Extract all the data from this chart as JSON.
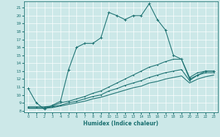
{
  "xlabel": "Humidex (Indice chaleur)",
  "bg_color": "#cce8e8",
  "line_color": "#1a7070",
  "grid_color": "#ffffff",
  "xlim": [
    -0.5,
    23.5
  ],
  "ylim": [
    7.8,
    21.8
  ],
  "xticks": [
    0,
    1,
    2,
    3,
    4,
    5,
    6,
    7,
    8,
    9,
    10,
    11,
    12,
    13,
    14,
    15,
    16,
    17,
    18,
    19,
    20,
    21,
    22,
    23
  ],
  "yticks": [
    8,
    9,
    10,
    11,
    12,
    13,
    14,
    15,
    16,
    17,
    18,
    19,
    20,
    21
  ],
  "line1_x": [
    0,
    1,
    2,
    3,
    4,
    5,
    6,
    7,
    8,
    9,
    10,
    11,
    12,
    13,
    14,
    15,
    16,
    17,
    18,
    19,
    20,
    21,
    22,
    23
  ],
  "line1_y": [
    10.8,
    9.0,
    8.2,
    8.7,
    9.2,
    13.2,
    16.0,
    16.5,
    16.5,
    17.2,
    20.4,
    20.0,
    19.5,
    20.0,
    20.0,
    21.5,
    19.5,
    18.2,
    15.0,
    14.5,
    12.0,
    12.5,
    13.0,
    13.0
  ],
  "line2_x": [
    0,
    1,
    2,
    3,
    4,
    5,
    6,
    7,
    8,
    9,
    10,
    11,
    12,
    13,
    14,
    15,
    16,
    17,
    18,
    19,
    20,
    21,
    22,
    23
  ],
  "line2_y": [
    8.5,
    8.5,
    8.5,
    8.6,
    9.0,
    9.2,
    9.5,
    9.8,
    10.2,
    10.5,
    11.0,
    11.5,
    12.0,
    12.5,
    13.0,
    13.5,
    13.8,
    14.2,
    14.5,
    14.5,
    12.2,
    12.8,
    13.0,
    13.0
  ],
  "line3_x": [
    0,
    1,
    2,
    3,
    4,
    5,
    6,
    7,
    8,
    9,
    10,
    11,
    12,
    13,
    14,
    15,
    16,
    17,
    18,
    19,
    20,
    21,
    22,
    23
  ],
  "line3_y": [
    8.4,
    8.4,
    8.4,
    8.5,
    8.7,
    9.0,
    9.2,
    9.5,
    9.8,
    10.0,
    10.5,
    10.8,
    11.2,
    11.5,
    11.8,
    12.2,
    12.5,
    12.8,
    13.0,
    13.2,
    11.8,
    12.5,
    12.8,
    12.8
  ],
  "line4_x": [
    0,
    1,
    2,
    3,
    4,
    5,
    6,
    7,
    8,
    9,
    10,
    11,
    12,
    13,
    14,
    15,
    16,
    17,
    18,
    19,
    20,
    21,
    22,
    23
  ],
  "line4_y": [
    8.3,
    8.3,
    8.3,
    8.4,
    8.6,
    8.8,
    9.0,
    9.2,
    9.5,
    9.7,
    10.0,
    10.3,
    10.6,
    10.9,
    11.1,
    11.5,
    11.7,
    12.0,
    12.2,
    12.4,
    11.5,
    12.0,
    12.3,
    12.5
  ]
}
